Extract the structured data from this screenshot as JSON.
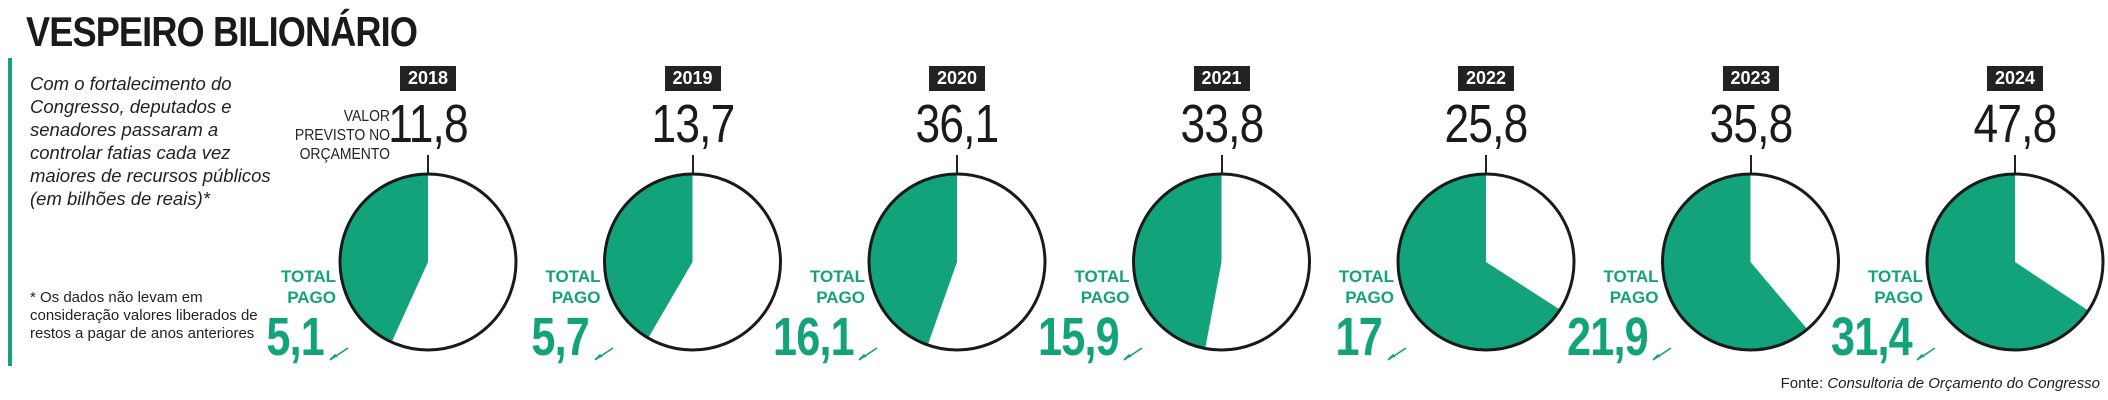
{
  "header": {
    "title": "VESPEIRO BILIONÁRIO",
    "intro": "Com o fortalecimento do Congresso, deputados e senadores passaram a controlar fatias cada vez maiores de recursos públicos (em bilhões de reais)*",
    "footnote": "* Os dados não levam em consideração valores liberados de restos a pagar de anos anteriores"
  },
  "labels": {
    "previsto": "VALOR PREVISTO NO ORÇAMENTO",
    "pago": "TOTAL PAGO"
  },
  "source": {
    "prefix": "Fonte: ",
    "name": "Consultoria de Orçamento do Congresso"
  },
  "colors": {
    "paid": "#12a37a",
    "unpaid": "#ffffff",
    "outline": "#1a1a1a"
  },
  "chart_data": {
    "type": "pie",
    "title": "VESPEIRO BILIONÁRIO",
    "unit": "bilhões de reais",
    "years": [
      {
        "year": "2018",
        "previsto": 11.8,
        "previsto_label": "11,8",
        "pago": 5.1,
        "pago_label": "5,1"
      },
      {
        "year": "2019",
        "previsto": 13.7,
        "previsto_label": "13,7",
        "pago": 5.7,
        "pago_label": "5,7"
      },
      {
        "year": "2020",
        "previsto": 36.1,
        "previsto_label": "36,1",
        "pago": 16.1,
        "pago_label": "16,1"
      },
      {
        "year": "2021",
        "previsto": 33.8,
        "previsto_label": "33,8",
        "pago": 15.9,
        "pago_label": "15,9"
      },
      {
        "year": "2022",
        "previsto": 25.8,
        "previsto_label": "25,8",
        "pago": 17,
        "pago_label": "17"
      },
      {
        "year": "2023",
        "previsto": 35.8,
        "previsto_label": "35,8",
        "pago": 21.9,
        "pago_label": "21,9"
      },
      {
        "year": "2024",
        "previsto": 47.8,
        "previsto_label": "47,8",
        "pago": 31.4,
        "pago_label": "31,4"
      }
    ]
  }
}
